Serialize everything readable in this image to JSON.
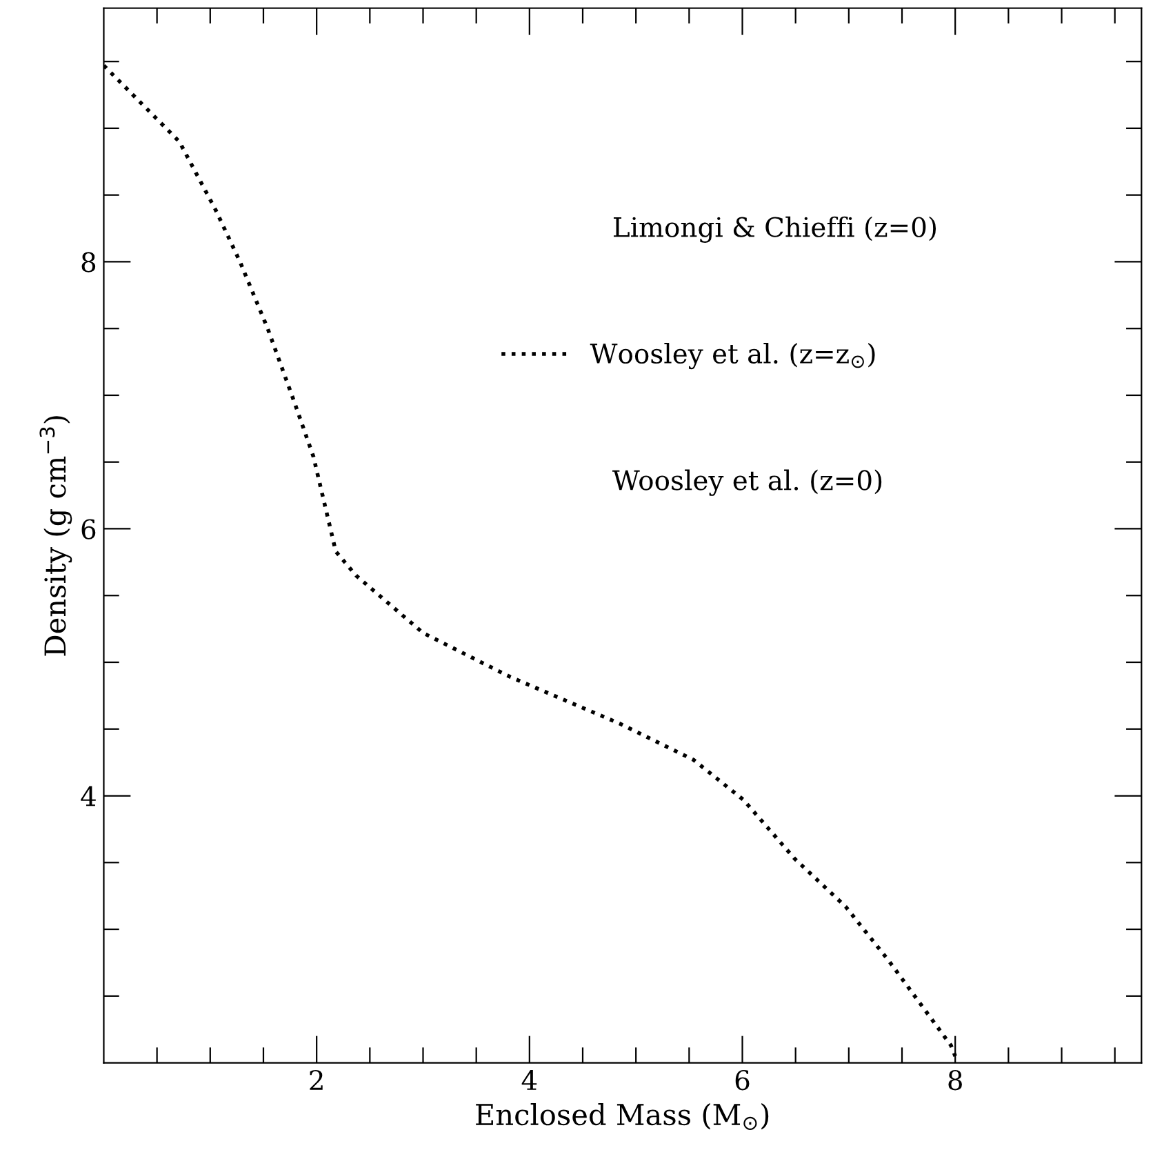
{
  "chart_data": {
    "type": "line",
    "xlabel": "Enclosed Mass (M$_{⊙}$)",
    "ylabel": "Density (g cm$^{−3}$)",
    "xlim": [
      0,
      9.75
    ],
    "ylim": [
      2,
      9.9
    ],
    "xticks": [
      {
        "value": 0.5,
        "label": null
      },
      {
        "value": 1,
        "label": null
      },
      {
        "value": 1.5,
        "label": null
      },
      2,
      {
        "value": 2.5,
        "label": null
      },
      {
        "value": 3,
        "label": null
      },
      {
        "value": 3.5,
        "label": null
      },
      4,
      {
        "value": 4.5,
        "label": null
      },
      {
        "value": 5,
        "label": null
      },
      {
        "value": 5.5,
        "label": null
      },
      6,
      {
        "value": 6.5,
        "label": null
      },
      {
        "value": 7,
        "label": null
      },
      {
        "value": 7.5,
        "label": null
      },
      8,
      {
        "value": 8.5,
        "label": null
      },
      {
        "value": 9,
        "label": null
      },
      {
        "value": 9.5,
        "label": null
      }
    ],
    "yticks": [
      {
        "value": 2.5,
        "label": null
      },
      {
        "value": 3,
        "label": null
      },
      {
        "value": 3.5,
        "label": null
      },
      4,
      {
        "value": 4.5,
        "label": null
      },
      {
        "value": 5,
        "label": null
      },
      {
        "value": 5.5,
        "label": null
      },
      6,
      {
        "value": 6.5,
        "label": null
      },
      {
        "value": 7,
        "label": null
      },
      {
        "value": 7.5,
        "label": null
      },
      8,
      {
        "value": 8.5,
        "label": null
      },
      {
        "value": 9,
        "label": null
      },
      {
        "value": 9.5,
        "label": null
      }
    ],
    "series": [
      {
        "name": "Woosley et al. (z=z$_{⊙}$)",
        "color": "#000000",
        "line_style": "dotted",
        "x": [
          0,
          0.71,
          1.05,
          1.28,
          1.54,
          1.79,
          1.97,
          2.18,
          2.37,
          3.0,
          3.82,
          4.85,
          5.54,
          6.01,
          6.49,
          6.97,
          7.38,
          7.96,
          8.0
        ],
        "values": [
          9.47,
          8.9,
          8.39,
          8.0,
          7.5,
          6.95,
          6.54,
          5.83,
          5.65,
          5.22,
          4.89,
          4.54,
          4.27,
          3.97,
          3.53,
          3.17,
          2.76,
          2.13,
          2.05
        ]
      }
    ],
    "legend": "right",
    "annotations": [
      "Limongi & Chieffi (z=0)",
      "Woosley et al. (z=0)"
    ]
  }
}
